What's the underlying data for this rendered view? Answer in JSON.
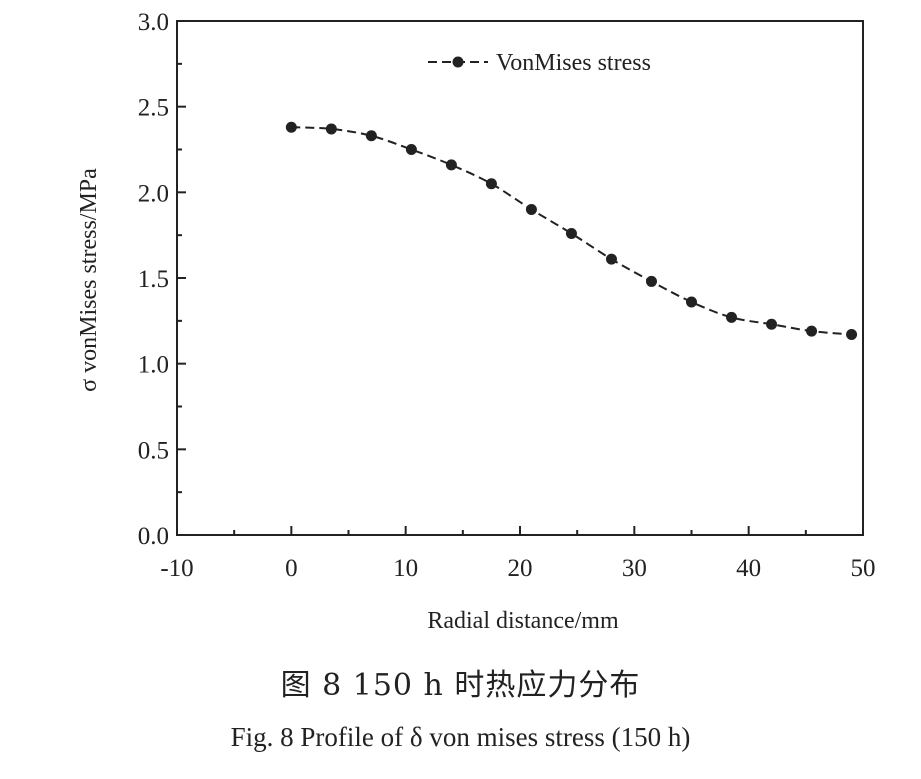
{
  "chart_data": {
    "type": "line",
    "xlabel": "Radial distance/mm",
    "ylabel": "σ vonMises stress/MPa",
    "xlim": [
      -10,
      50
    ],
    "ylim": [
      0.0,
      3.0
    ],
    "xticks": [
      -10,
      0,
      10,
      20,
      30,
      40,
      50
    ],
    "yticks": [
      0.0,
      0.5,
      1.0,
      1.5,
      2.0,
      2.5,
      3.0
    ],
    "xtick_labels": [
      "-10",
      "0",
      "10",
      "20",
      "30",
      "40",
      "50"
    ],
    "ytick_labels": [
      "0.0",
      "0.5",
      "1.0",
      "1.5",
      "2.0",
      "2.5",
      "3.0"
    ],
    "legend_position": "top-right",
    "grid": false,
    "series": [
      {
        "name": "VonMises stress",
        "color": "#222222",
        "marker": "circle",
        "line_style": "dashed",
        "x": [
          0,
          3.5,
          7,
          10.5,
          14,
          17.5,
          21,
          24.5,
          28,
          31.5,
          35,
          38.5,
          42,
          45.5,
          49
        ],
        "y": [
          2.38,
          2.37,
          2.33,
          2.25,
          2.16,
          2.05,
          1.9,
          1.76,
          1.61,
          1.48,
          1.36,
          1.27,
          1.23,
          1.19,
          1.17
        ]
      }
    ]
  },
  "caption": {
    "chinese": "图 8    150 h 时热应力分布",
    "english": "Fig. 8    Profile of δ von mises stress (150 h)"
  }
}
